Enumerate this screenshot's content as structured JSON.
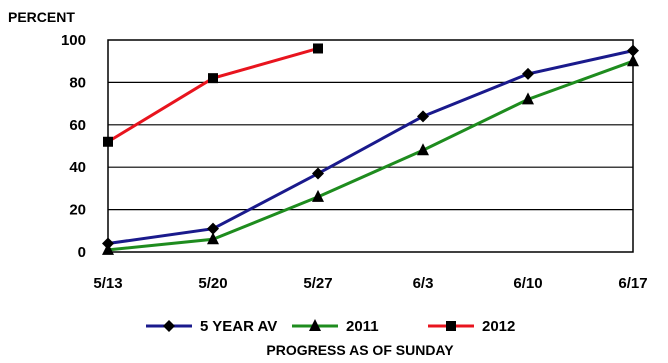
{
  "chart_data": {
    "type": "line",
    "title": "",
    "ylabel": "PERCENT",
    "xlabel": "PROGRESS AS OF SUNDAY",
    "categories": [
      "5/13",
      "5/20",
      "5/27",
      "6/3",
      "6/10",
      "6/17"
    ],
    "ylim": [
      0,
      100
    ],
    "yticks": [
      0,
      20,
      40,
      60,
      80,
      100
    ],
    "grid": true,
    "legend_position": "bottom",
    "series": [
      {
        "name": "5 YEAR AV",
        "color": "#1a1a8c",
        "marker": "diamond",
        "values": [
          4,
          11,
          37,
          64,
          84,
          95
        ]
      },
      {
        "name": "2011",
        "color": "#1e8c1e",
        "marker": "triangle",
        "values": [
          1,
          6,
          26,
          48,
          72,
          90
        ]
      },
      {
        "name": "2012",
        "color": "#e8141e",
        "marker": "square",
        "values": [
          52,
          82,
          96,
          null,
          null,
          null
        ]
      }
    ]
  }
}
